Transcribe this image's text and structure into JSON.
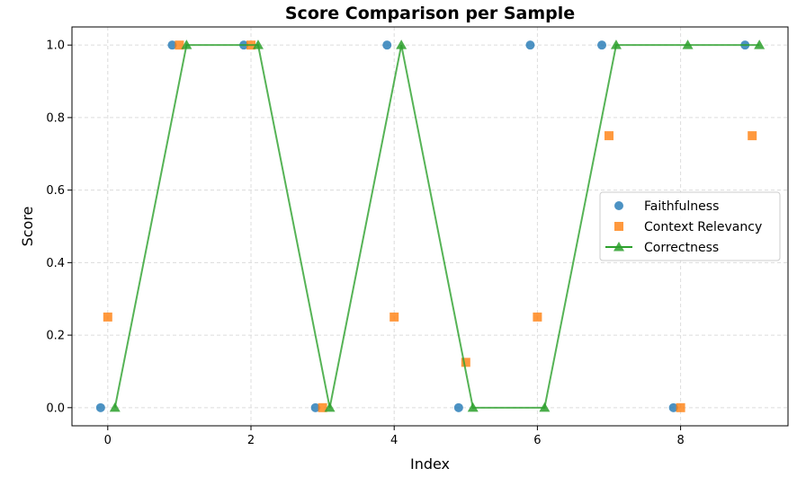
{
  "chart_data": {
    "type": "scatter",
    "title": "Score Comparison per Sample",
    "xlabel": "Index",
    "ylabel": "Score",
    "xlim": [
      -0.5,
      9.5
    ],
    "ylim": [
      -0.05,
      1.05
    ],
    "x_ticks": [
      "0",
      "2",
      "4",
      "6",
      "8"
    ],
    "y_ticks": [
      "0.0",
      "0.2",
      "0.4",
      "0.6",
      "0.8",
      "1.0"
    ],
    "grid": true,
    "legend_position": "center-right",
    "series": [
      {
        "name": "Faithfulness",
        "kind": "scatter",
        "marker": "circle",
        "color": "#1f77b4",
        "x": [
          0,
          1,
          2,
          3,
          4,
          5,
          6,
          7,
          8,
          9
        ],
        "values": [
          0.0,
          1.0,
          1.0,
          0.0,
          1.0,
          0.0,
          1.0,
          1.0,
          0.0,
          1.0
        ]
      },
      {
        "name": "Context Relevancy",
        "kind": "scatter",
        "marker": "square",
        "color": "#ff7f0e",
        "x": [
          0,
          1,
          2,
          3,
          4,
          5,
          6,
          7,
          8,
          9
        ],
        "values": [
          0.25,
          1.0,
          1.0,
          0.0,
          0.25,
          0.125,
          0.25,
          0.75,
          0.0,
          0.75
        ]
      },
      {
        "name": "Correctness",
        "kind": "line",
        "marker": "triangle",
        "color": "#2ca02c",
        "x": [
          0,
          1,
          2,
          3,
          4,
          5,
          6,
          7,
          8,
          9
        ],
        "values": [
          0.0,
          1.0,
          1.0,
          0.0,
          1.0,
          0.0,
          0.0,
          1.0,
          1.0,
          1.0
        ]
      }
    ]
  }
}
